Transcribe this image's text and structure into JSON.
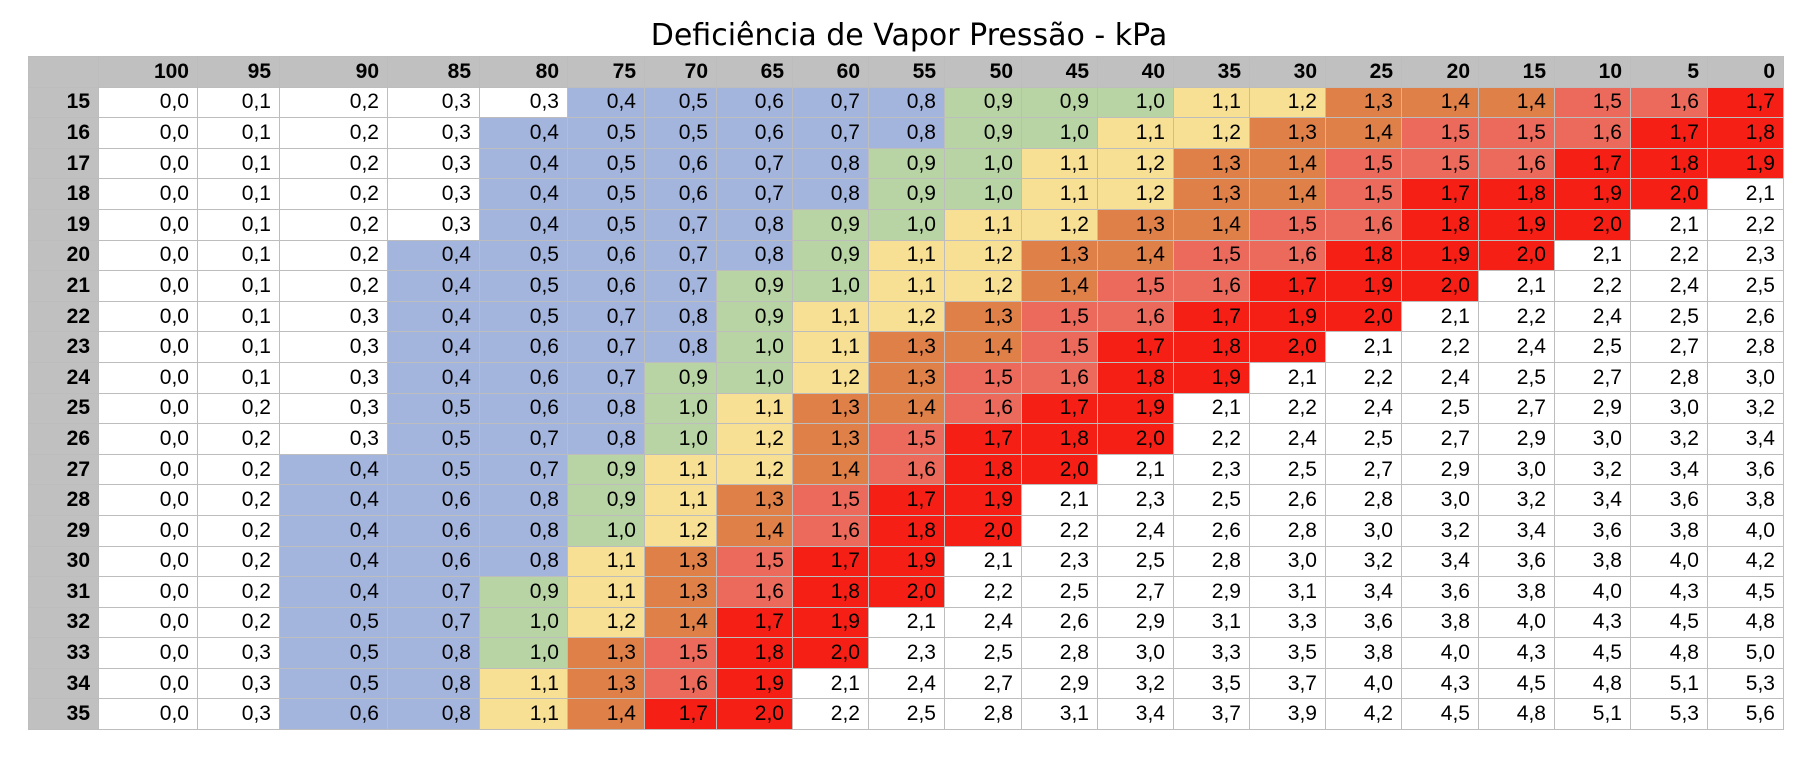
{
  "chart_data": {
    "type": "heatmap",
    "title": "Deficiência de Vapor Pressão - kPa",
    "columns": [
      "100",
      "95",
      "90",
      "85",
      "80",
      "75",
      "70",
      "65",
      "60",
      "55",
      "50",
      "45",
      "40",
      "35",
      "30",
      "25",
      "20",
      "15",
      "10",
      "5",
      "0"
    ],
    "rows": [
      {
        "label": "15",
        "values": [
          "0,0",
          "0,1",
          "0,2",
          "0,3",
          "0,3",
          "0,4",
          "0,5",
          "0,6",
          "0,7",
          "0,8",
          "0,9",
          "0,9",
          "1,0",
          "1,1",
          "1,2",
          "1,3",
          "1,4",
          "1,4",
          "1,5",
          "1,6",
          "1,7"
        ]
      },
      {
        "label": "16",
        "values": [
          "0,0",
          "0,1",
          "0,2",
          "0,3",
          "0,4",
          "0,5",
          "0,5",
          "0,6",
          "0,7",
          "0,8",
          "0,9",
          "1,0",
          "1,1",
          "1,2",
          "1,3",
          "1,4",
          "1,5",
          "1,5",
          "1,6",
          "1,7",
          "1,8"
        ]
      },
      {
        "label": "17",
        "values": [
          "0,0",
          "0,1",
          "0,2",
          "0,3",
          "0,4",
          "0,5",
          "0,6",
          "0,7",
          "0,8",
          "0,9",
          "1,0",
          "1,1",
          "1,2",
          "1,3",
          "1,4",
          "1,5",
          "1,5",
          "1,6",
          "1,7",
          "1,8",
          "1,9"
        ]
      },
      {
        "label": "18",
        "values": [
          "0,0",
          "0,1",
          "0,2",
          "0,3",
          "0,4",
          "0,5",
          "0,6",
          "0,7",
          "0,8",
          "0,9",
          "1,0",
          "1,1",
          "1,2",
          "1,3",
          "1,4",
          "1,5",
          "1,7",
          "1,8",
          "1,9",
          "2,0",
          "2,1"
        ]
      },
      {
        "label": "19",
        "values": [
          "0,0",
          "0,1",
          "0,2",
          "0,3",
          "0,4",
          "0,5",
          "0,7",
          "0,8",
          "0,9",
          "1,0",
          "1,1",
          "1,2",
          "1,3",
          "1,4",
          "1,5",
          "1,6",
          "1,8",
          "1,9",
          "2,0",
          "2,1",
          "2,2"
        ]
      },
      {
        "label": "20",
        "values": [
          "0,0",
          "0,1",
          "0,2",
          "0,4",
          "0,5",
          "0,6",
          "0,7",
          "0,8",
          "0,9",
          "1,1",
          "1,2",
          "1,3",
          "1,4",
          "1,5",
          "1,6",
          "1,8",
          "1,9",
          "2,0",
          "2,1",
          "2,2",
          "2,3"
        ]
      },
      {
        "label": "21",
        "values": [
          "0,0",
          "0,1",
          "0,2",
          "0,4",
          "0,5",
          "0,6",
          "0,7",
          "0,9",
          "1,0",
          "1,1",
          "1,2",
          "1,4",
          "1,5",
          "1,6",
          "1,7",
          "1,9",
          "2,0",
          "2,1",
          "2,2",
          "2,4",
          "2,5"
        ]
      },
      {
        "label": "22",
        "values": [
          "0,0",
          "0,1",
          "0,3",
          "0,4",
          "0,5",
          "0,7",
          "0,8",
          "0,9",
          "1,1",
          "1,2",
          "1,3",
          "1,5",
          "1,6",
          "1,7",
          "1,9",
          "2,0",
          "2,1",
          "2,2",
          "2,4",
          "2,5",
          "2,6"
        ]
      },
      {
        "label": "23",
        "values": [
          "0,0",
          "0,1",
          "0,3",
          "0,4",
          "0,6",
          "0,7",
          "0,8",
          "1,0",
          "1,1",
          "1,3",
          "1,4",
          "1,5",
          "1,7",
          "1,8",
          "2,0",
          "2,1",
          "2,2",
          "2,4",
          "2,5",
          "2,7",
          "2,8"
        ]
      },
      {
        "label": "24",
        "values": [
          "0,0",
          "0,1",
          "0,3",
          "0,4",
          "0,6",
          "0,7",
          "0,9",
          "1,0",
          "1,2",
          "1,3",
          "1,5",
          "1,6",
          "1,8",
          "1,9",
          "2,1",
          "2,2",
          "2,4",
          "2,5",
          "2,7",
          "2,8",
          "3,0"
        ]
      },
      {
        "label": "25",
        "values": [
          "0,0",
          "0,2",
          "0,3",
          "0,5",
          "0,6",
          "0,8",
          "1,0",
          "1,1",
          "1,3",
          "1,4",
          "1,6",
          "1,7",
          "1,9",
          "2,1",
          "2,2",
          "2,4",
          "2,5",
          "2,7",
          "2,9",
          "3,0",
          "3,2"
        ]
      },
      {
        "label": "26",
        "values": [
          "0,0",
          "0,2",
          "0,3",
          "0,5",
          "0,7",
          "0,8",
          "1,0",
          "1,2",
          "1,3",
          "1,5",
          "1,7",
          "1,8",
          "2,0",
          "2,2",
          "2,4",
          "2,5",
          "2,7",
          "2,9",
          "3,0",
          "3,2",
          "3,4"
        ]
      },
      {
        "label": "27",
        "values": [
          "0,0",
          "0,2",
          "0,4",
          "0,5",
          "0,7",
          "0,9",
          "1,1",
          "1,2",
          "1,4",
          "1,6",
          "1,8",
          "2,0",
          "2,1",
          "2,3",
          "2,5",
          "2,7",
          "2,9",
          "3,0",
          "3,2",
          "3,4",
          "3,6"
        ]
      },
      {
        "label": "28",
        "values": [
          "0,0",
          "0,2",
          "0,4",
          "0,6",
          "0,8",
          "0,9",
          "1,1",
          "1,3",
          "1,5",
          "1,7",
          "1,9",
          "2,1",
          "2,3",
          "2,5",
          "2,6",
          "2,8",
          "3,0",
          "3,2",
          "3,4",
          "3,6",
          "3,8"
        ]
      },
      {
        "label": "29",
        "values": [
          "0,0",
          "0,2",
          "0,4",
          "0,6",
          "0,8",
          "1,0",
          "1,2",
          "1,4",
          "1,6",
          "1,8",
          "2,0",
          "2,2",
          "2,4",
          "2,6",
          "2,8",
          "3,0",
          "3,2",
          "3,4",
          "3,6",
          "3,8",
          "4,0"
        ]
      },
      {
        "label": "30",
        "values": [
          "0,0",
          "0,2",
          "0,4",
          "0,6",
          "0,8",
          "1,1",
          "1,3",
          "1,5",
          "1,7",
          "1,9",
          "2,1",
          "2,3",
          "2,5",
          "2,8",
          "3,0",
          "3,2",
          "3,4",
          "3,6",
          "3,8",
          "4,0",
          "4,2"
        ]
      },
      {
        "label": "31",
        "values": [
          "0,0",
          "0,2",
          "0,4",
          "0,7",
          "0,9",
          "1,1",
          "1,3",
          "1,6",
          "1,8",
          "2,0",
          "2,2",
          "2,5",
          "2,7",
          "2,9",
          "3,1",
          "3,4",
          "3,6",
          "3,8",
          "4,0",
          "4,3",
          "4,5"
        ]
      },
      {
        "label": "32",
        "values": [
          "0,0",
          "0,2",
          "0,5",
          "0,7",
          "1,0",
          "1,2",
          "1,4",
          "1,7",
          "1,9",
          "2,1",
          "2,4",
          "2,6",
          "2,9",
          "3,1",
          "3,3",
          "3,6",
          "3,8",
          "4,0",
          "4,3",
          "4,5",
          "4,8"
        ]
      },
      {
        "label": "33",
        "values": [
          "0,0",
          "0,3",
          "0,5",
          "0,8",
          "1,0",
          "1,3",
          "1,5",
          "1,8",
          "2,0",
          "2,3",
          "2,5",
          "2,8",
          "3,0",
          "3,3",
          "3,5",
          "3,8",
          "4,0",
          "4,3",
          "4,5",
          "4,8",
          "5,0"
        ]
      },
      {
        "label": "34",
        "values": [
          "0,0",
          "0,3",
          "0,5",
          "0,8",
          "1,1",
          "1,3",
          "1,6",
          "1,9",
          "2,1",
          "2,4",
          "2,7",
          "2,9",
          "3,2",
          "3,5",
          "3,7",
          "4,0",
          "4,3",
          "4,5",
          "4,8",
          "5,1",
          "5,3"
        ]
      },
      {
        "label": "35",
        "values": [
          "0,0",
          "0,3",
          "0,6",
          "0,8",
          "1,1",
          "1,4",
          "1,7",
          "2,0",
          "2,2",
          "2,5",
          "2,8",
          "3,1",
          "3,4",
          "3,7",
          "3,9",
          "4,2",
          "4,5",
          "4,8",
          "5,1",
          "5,3",
          "5,6"
        ]
      }
    ],
    "color_scale": [
      {
        "max": 0.35,
        "color": "#ffffff"
      },
      {
        "max": 0.85,
        "color": "#a4b5dd"
      },
      {
        "max": 1.05,
        "color": "#b8d4a4"
      },
      {
        "max": 1.25,
        "color": "#f7df94"
      },
      {
        "max": 1.45,
        "color": "#de8048"
      },
      {
        "max": 1.65,
        "color": "#ec6a5c"
      },
      {
        "max": 2.05,
        "color": "#f51f15"
      },
      {
        "max": 99,
        "color": "#ffffff"
      }
    ],
    "header_background": "#c0c0c0",
    "grid": true
  }
}
